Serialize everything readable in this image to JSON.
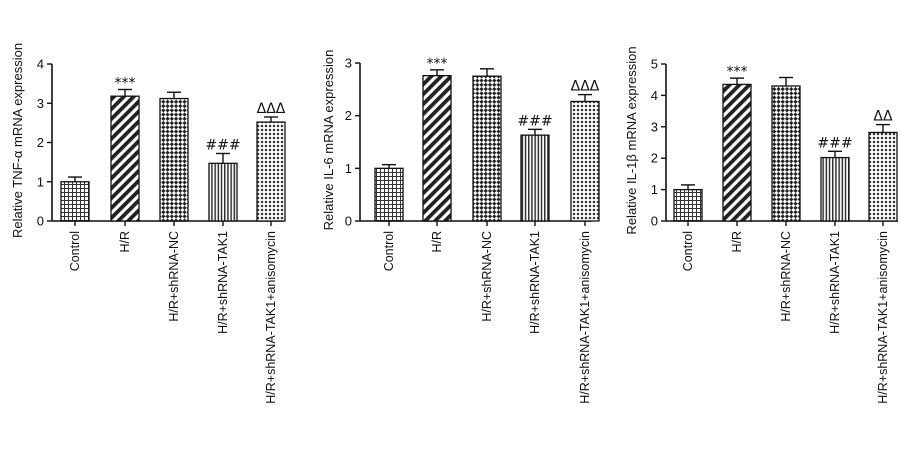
{
  "chart_data": [
    {
      "type": "bar",
      "ylabel": "Relative TNF-α mRNA expression",
      "ylim": [
        0,
        4
      ],
      "yticks": [
        0,
        1,
        2,
        3,
        4
      ],
      "categories": [
        "Control",
        "H/R",
        "H/R+shRNA-NC",
        "H/R+shRNA-TAK1",
        "H/R+shRNA-TAK1+anisomycin"
      ],
      "values": [
        1.0,
        3.18,
        3.12,
        1.47,
        2.52
      ],
      "errors": [
        0.12,
        0.17,
        0.16,
        0.25,
        0.13
      ],
      "annotations": [
        "",
        "***",
        "",
        "###",
        "ΔΔΔ"
      ],
      "patterns": [
        "grid",
        "diag",
        "check",
        "vert",
        "dots"
      ]
    },
    {
      "type": "bar",
      "ylabel": "Relative IL-6 mRNA expression",
      "ylim": [
        0,
        3
      ],
      "yticks": [
        0,
        1,
        2,
        3
      ],
      "categories": [
        "Control",
        "H/R",
        "H/R+shRNA-NC",
        "H/R+shRNA-TAK1",
        "H/R+shRNA-TAK1+anisomycin"
      ],
      "values": [
        1.0,
        2.76,
        2.75,
        1.63,
        2.27
      ],
      "errors": [
        0.07,
        0.11,
        0.14,
        0.11,
        0.13
      ],
      "annotations": [
        "",
        "***",
        "",
        "###",
        "ΔΔΔ"
      ],
      "patterns": [
        "grid",
        "diag",
        "check",
        "vert",
        "dots"
      ]
    },
    {
      "type": "bar",
      "ylabel": "Relative IL-1β mRNA expression",
      "ylim": [
        0,
        5
      ],
      "yticks": [
        0,
        1,
        2,
        3,
        4,
        5
      ],
      "categories": [
        "Control",
        "H/R",
        "H/R+shRNA-NC",
        "H/R+shRNA-TAK1",
        "H/R+shRNA-TAK1+anisomycin"
      ],
      "values": [
        1.0,
        4.35,
        4.3,
        2.02,
        2.82
      ],
      "errors": [
        0.15,
        0.2,
        0.27,
        0.2,
        0.25
      ],
      "annotations": [
        "",
        "***",
        "",
        "###",
        "ΔΔ"
      ],
      "patterns": [
        "grid",
        "diag",
        "check",
        "vert",
        "dots"
      ]
    }
  ]
}
